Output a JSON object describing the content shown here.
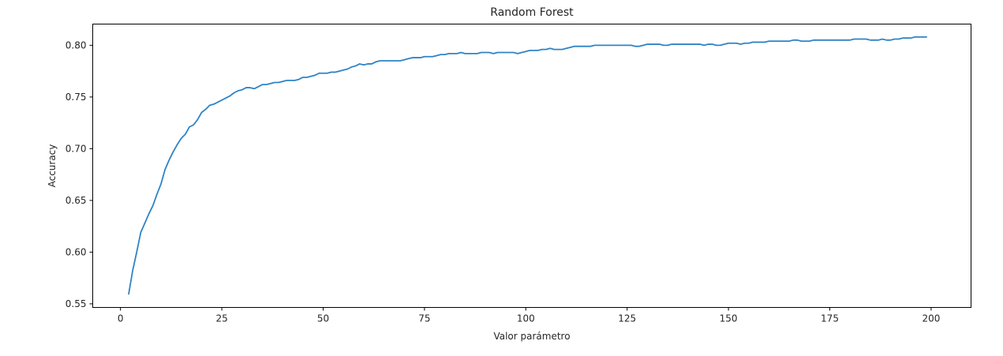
{
  "chart_data": {
    "type": "line",
    "title": "Random Forest",
    "xlabel": "Valor parámetro",
    "ylabel": "Accuracy",
    "xlim": [
      -6.85,
      209.85
    ],
    "ylim": [
      0.5465,
      0.8205
    ],
    "grid": false,
    "x_ticks": [
      0,
      25,
      50,
      75,
      100,
      125,
      150,
      175,
      200
    ],
    "y_ticks": [
      0.55,
      0.6,
      0.65,
      0.7,
      0.75,
      0.8
    ],
    "x_tick_labels": [
      "0",
      "25",
      "50",
      "75",
      "100",
      "125",
      "150",
      "175",
      "200"
    ],
    "y_tick_labels": [
      "0.55",
      "0.60",
      "0.65",
      "0.70",
      "0.75",
      "0.80"
    ],
    "series": [
      {
        "color": "#2f83c5",
        "points": [
          [
            2,
            0.559
          ],
          [
            3,
            0.582
          ],
          [
            4,
            0.6
          ],
          [
            5,
            0.619
          ],
          [
            6,
            0.628
          ],
          [
            7,
            0.637
          ],
          [
            8,
            0.645
          ],
          [
            9,
            0.656
          ],
          [
            10,
            0.666
          ],
          [
            11,
            0.68
          ],
          [
            12,
            0.689
          ],
          [
            13,
            0.697
          ],
          [
            14,
            0.704
          ],
          [
            15,
            0.71
          ],
          [
            16,
            0.714
          ],
          [
            17,
            0.721
          ],
          [
            18,
            0.723
          ],
          [
            19,
            0.728
          ],
          [
            20,
            0.735
          ],
          [
            21,
            0.738
          ],
          [
            22,
            0.742
          ],
          [
            23,
            0.743
          ],
          [
            24,
            0.745
          ],
          [
            25,
            0.747
          ],
          [
            26,
            0.749
          ],
          [
            27,
            0.751
          ],
          [
            28,
            0.754
          ],
          [
            29,
            0.756
          ],
          [
            30,
            0.757
          ],
          [
            31,
            0.759
          ],
          [
            32,
            0.759
          ],
          [
            33,
            0.758
          ],
          [
            34,
            0.76
          ],
          [
            35,
            0.762
          ],
          [
            36,
            0.762
          ],
          [
            37,
            0.763
          ],
          [
            38,
            0.764
          ],
          [
            39,
            0.764
          ],
          [
            40,
            0.765
          ],
          [
            41,
            0.766
          ],
          [
            42,
            0.766
          ],
          [
            43,
            0.766
          ],
          [
            44,
            0.767
          ],
          [
            45,
            0.769
          ],
          [
            46,
            0.769
          ],
          [
            47,
            0.77
          ],
          [
            48,
            0.771
          ],
          [
            49,
            0.773
          ],
          [
            50,
            0.773
          ],
          [
            51,
            0.773
          ],
          [
            52,
            0.774
          ],
          [
            53,
            0.774
          ],
          [
            54,
            0.775
          ],
          [
            55,
            0.776
          ],
          [
            56,
            0.777
          ],
          [
            57,
            0.779
          ],
          [
            58,
            0.78
          ],
          [
            59,
            0.782
          ],
          [
            60,
            0.781
          ],
          [
            61,
            0.782
          ],
          [
            62,
            0.782
          ],
          [
            63,
            0.784
          ],
          [
            64,
            0.785
          ],
          [
            65,
            0.785
          ],
          [
            66,
            0.785
          ],
          [
            67,
            0.785
          ],
          [
            68,
            0.785
          ],
          [
            69,
            0.785
          ],
          [
            70,
            0.786
          ],
          [
            71,
            0.787
          ],
          [
            72,
            0.788
          ],
          [
            73,
            0.788
          ],
          [
            74,
            0.788
          ],
          [
            75,
            0.789
          ],
          [
            76,
            0.789
          ],
          [
            77,
            0.789
          ],
          [
            78,
            0.79
          ],
          [
            79,
            0.791
          ],
          [
            80,
            0.791
          ],
          [
            81,
            0.792
          ],
          [
            82,
            0.792
          ],
          [
            83,
            0.792
          ],
          [
            84,
            0.793
          ],
          [
            85,
            0.792
          ],
          [
            86,
            0.792
          ],
          [
            87,
            0.792
          ],
          [
            88,
            0.792
          ],
          [
            89,
            0.793
          ],
          [
            90,
            0.793
          ],
          [
            91,
            0.793
          ],
          [
            92,
            0.792
          ],
          [
            93,
            0.793
          ],
          [
            94,
            0.793
          ],
          [
            95,
            0.793
          ],
          [
            96,
            0.793
          ],
          [
            97,
            0.793
          ],
          [
            98,
            0.792
          ],
          [
            99,
            0.793
          ],
          [
            100,
            0.794
          ],
          [
            101,
            0.795
          ],
          [
            102,
            0.795
          ],
          [
            103,
            0.795
          ],
          [
            104,
            0.796
          ],
          [
            105,
            0.796
          ],
          [
            106,
            0.797
          ],
          [
            107,
            0.796
          ],
          [
            108,
            0.796
          ],
          [
            109,
            0.796
          ],
          [
            110,
            0.797
          ],
          [
            111,
            0.798
          ],
          [
            112,
            0.799
          ],
          [
            113,
            0.799
          ],
          [
            114,
            0.799
          ],
          [
            115,
            0.799
          ],
          [
            116,
            0.799
          ],
          [
            117,
            0.8
          ],
          [
            118,
            0.8
          ],
          [
            119,
            0.8
          ],
          [
            120,
            0.8
          ],
          [
            121,
            0.8
          ],
          [
            122,
            0.8
          ],
          [
            123,
            0.8
          ],
          [
            124,
            0.8
          ],
          [
            125,
            0.8
          ],
          [
            126,
            0.8
          ],
          [
            127,
            0.799
          ],
          [
            128,
            0.799
          ],
          [
            129,
            0.8
          ],
          [
            130,
            0.801
          ],
          [
            131,
            0.801
          ],
          [
            132,
            0.801
          ],
          [
            133,
            0.801
          ],
          [
            134,
            0.8
          ],
          [
            135,
            0.8
          ],
          [
            136,
            0.801
          ],
          [
            137,
            0.801
          ],
          [
            138,
            0.801
          ],
          [
            139,
            0.801
          ],
          [
            140,
            0.801
          ],
          [
            141,
            0.801
          ],
          [
            142,
            0.801
          ],
          [
            143,
            0.801
          ],
          [
            144,
            0.8
          ],
          [
            145,
            0.801
          ],
          [
            146,
            0.801
          ],
          [
            147,
            0.8
          ],
          [
            148,
            0.8
          ],
          [
            149,
            0.801
          ],
          [
            150,
            0.802
          ],
          [
            151,
            0.802
          ],
          [
            152,
            0.802
          ],
          [
            153,
            0.801
          ],
          [
            154,
            0.802
          ],
          [
            155,
            0.802
          ],
          [
            156,
            0.803
          ],
          [
            157,
            0.803
          ],
          [
            158,
            0.803
          ],
          [
            159,
            0.803
          ],
          [
            160,
            0.804
          ],
          [
            161,
            0.804
          ],
          [
            162,
            0.804
          ],
          [
            163,
            0.804
          ],
          [
            164,
            0.804
          ],
          [
            165,
            0.804
          ],
          [
            166,
            0.805
          ],
          [
            167,
            0.805
          ],
          [
            168,
            0.804
          ],
          [
            169,
            0.804
          ],
          [
            170,
            0.804
          ],
          [
            171,
            0.805
          ],
          [
            172,
            0.805
          ],
          [
            173,
            0.805
          ],
          [
            174,
            0.805
          ],
          [
            175,
            0.805
          ],
          [
            176,
            0.805
          ],
          [
            177,
            0.805
          ],
          [
            178,
            0.805
          ],
          [
            179,
            0.805
          ],
          [
            180,
            0.805
          ],
          [
            181,
            0.806
          ],
          [
            182,
            0.806
          ],
          [
            183,
            0.806
          ],
          [
            184,
            0.806
          ],
          [
            185,
            0.805
          ],
          [
            186,
            0.805
          ],
          [
            187,
            0.805
          ],
          [
            188,
            0.806
          ],
          [
            189,
            0.805
          ],
          [
            190,
            0.805
          ],
          [
            191,
            0.806
          ],
          [
            192,
            0.806
          ],
          [
            193,
            0.807
          ],
          [
            194,
            0.807
          ],
          [
            195,
            0.807
          ],
          [
            196,
            0.808
          ],
          [
            197,
            0.808
          ],
          [
            198,
            0.808
          ],
          [
            199,
            0.808
          ]
        ]
      }
    ]
  }
}
